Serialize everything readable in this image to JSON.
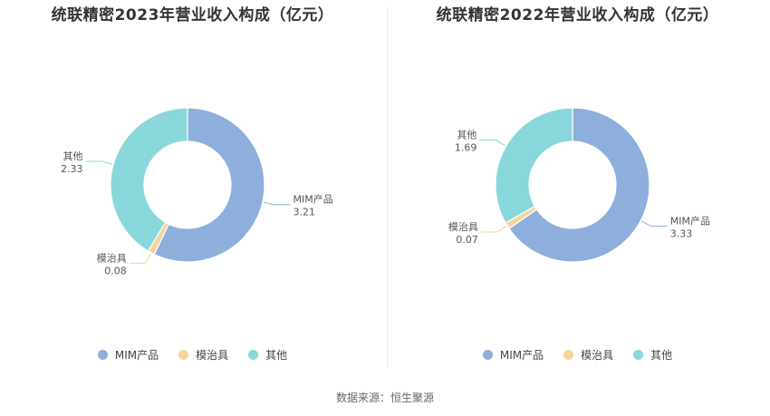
{
  "chart_data": [
    {
      "type": "pie",
      "title": "统联精密2023年营业收入构成（亿元）",
      "categories": [
        "MIM产品",
        "模治具",
        "其他"
      ],
      "values": [
        3.21,
        0.08,
        2.33
      ],
      "value_labels": [
        "3.21",
        "0.08",
        "2.33"
      ],
      "colors": [
        "#8eaedb",
        "#f6d49a",
        "#88d7db"
      ],
      "legend_position": "bottom"
    },
    {
      "type": "pie",
      "title": "统联精密2022年营业收入构成（亿元）",
      "categories": [
        "MIM产品",
        "模治具",
        "其他"
      ],
      "values": [
        3.33,
        0.07,
        1.69
      ],
      "value_labels": [
        "3.33",
        "0.07",
        "1.69"
      ],
      "colors": [
        "#8eaedb",
        "#f6d49a",
        "#88d7db"
      ],
      "legend_position": "bottom"
    }
  ],
  "source": "数据来源：恒生聚源"
}
